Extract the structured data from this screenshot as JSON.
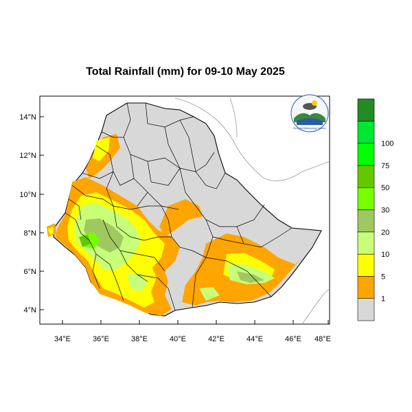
{
  "title": "Total Rainfall (mm) for 09-10 May 2025",
  "map": {
    "lat_labels": [
      "14°N",
      "12°N",
      "10°N",
      "8°N",
      "6°N",
      "4°N"
    ],
    "lon_labels": [
      "34°E",
      "36°E",
      "38°E",
      "40°E",
      "42°E",
      "44°E",
      "46°E",
      "48°E"
    ]
  },
  "legend": {
    "colors": [
      "#d8d8d8",
      "#ffa500",
      "#ffff00",
      "#c8ff78",
      "#a0c860",
      "#78ff00",
      "#64c800",
      "#00ff00",
      "#00e632",
      "#228b22"
    ],
    "labels": [
      "1",
      "5",
      "10",
      "20",
      "30",
      "50",
      "75",
      "100"
    ]
  },
  "logo": {
    "text": "Ethiopian Meteorology Institute"
  }
}
